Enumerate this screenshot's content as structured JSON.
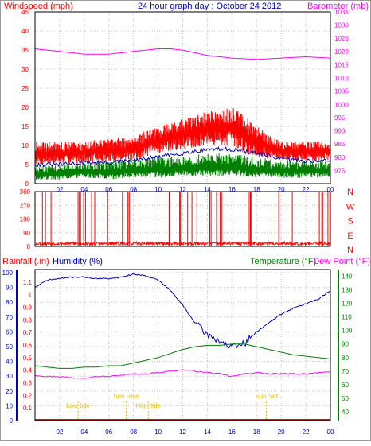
{
  "header": {
    "left_title": "Windspeed (mph)",
    "center_title": "24 hour graph day : October 24 2012",
    "right_title": "Barometer (mb)"
  },
  "colors": {
    "red": "#ff0000",
    "blue": "#0000c0",
    "green": "#008000",
    "magenta": "#ff00ff",
    "yellow": "#e8c000",
    "grid": "#c0c0c0"
  },
  "time_ticks": [
    "02",
    "04",
    "06",
    "08",
    "10",
    "12",
    "14",
    "16",
    "18",
    "20",
    "22",
    "00"
  ],
  "chart_data": [
    {
      "type": "line",
      "name": "wind-barometer",
      "x_range": [
        0,
        24
      ],
      "x_tick_labels": [
        "02",
        "04",
        "06",
        "08",
        "10",
        "12",
        "14",
        "16",
        "18",
        "20",
        "22",
        "00"
      ],
      "left_axis": {
        "label": "Windspeed (mph)",
        "range": [
          0,
          45
        ],
        "ticks": [
          0,
          5,
          10,
          15,
          20,
          25,
          30,
          35,
          40,
          45
        ]
      },
      "right_axis": {
        "label": "Barometer (mb)",
        "range": [
          970,
          1035
        ],
        "ticks": [
          975,
          980,
          985,
          990,
          995,
          1000,
          1005,
          1010,
          1015,
          1020,
          1025,
          1030,
          1035
        ]
      },
      "series": [
        {
          "axis": "right",
          "color": "#ff00ff",
          "x": [
            0,
            2,
            4,
            6,
            8,
            10,
            11,
            12,
            14,
            16,
            18,
            20,
            22,
            24
          ],
          "y": [
            1021,
            1020,
            1019,
            1019,
            1020,
            1021,
            1021,
            1020.5,
            1018.5,
            1017.5,
            1017,
            1017.5,
            1018,
            1017.5
          ]
        },
        {
          "axis": "left",
          "style": "band",
          "color": "#ff0000",
          "x": [
            0,
            2,
            4,
            6,
            8,
            9,
            10,
            12,
            14,
            16,
            17,
            18,
            20,
            22,
            24
          ],
          "low": [
            5,
            5,
            5.5,
            5.5,
            6,
            7,
            8,
            9,
            10,
            10,
            8,
            7,
            6,
            6,
            6
          ],
          "high": [
            11,
            11,
            11,
            12,
            12,
            14,
            15,
            17,
            19,
            20,
            18,
            15,
            11,
            11,
            11
          ]
        },
        {
          "axis": "left",
          "color": "#0000c0",
          "x": [
            0,
            2,
            4,
            6,
            8,
            10,
            12,
            14,
            16,
            18,
            20,
            22,
            24
          ],
          "y": [
            5,
            5,
            5.5,
            5.5,
            6,
            7,
            8,
            9,
            9,
            8,
            6.5,
            6,
            6
          ]
        },
        {
          "axis": "left",
          "style": "band",
          "color": "#008000",
          "x": [
            0,
            2,
            4,
            6,
            8,
            10,
            12,
            14,
            16,
            18,
            20,
            22,
            24
          ],
          "low": [
            1,
            1,
            1.5,
            1,
            1.5,
            1.5,
            2,
            2,
            2,
            1.5,
            1.5,
            1.5,
            1.5
          ],
          "high": [
            5,
            5,
            5.5,
            6,
            6.5,
            7,
            7,
            8,
            8,
            7,
            6,
            6,
            6
          ]
        }
      ]
    },
    {
      "type": "line",
      "name": "wind-direction",
      "x_range": [
        0,
        24
      ],
      "left_axis": {
        "range": [
          0,
          360
        ],
        "ticks": [
          0,
          90,
          180,
          270,
          360
        ]
      },
      "right_axis_labels": [
        "N",
        "W",
        "S",
        "E",
        "N"
      ],
      "series": [
        {
          "color": "#ff0000",
          "baseline_deg": 15,
          "spikes_hour": [
            0.6,
            0.85,
            1.3,
            3.5,
            3.6,
            3.7,
            3.95,
            4.1,
            4.6,
            4.85,
            5.9,
            7.1,
            7.55,
            7.65,
            10.9,
            11.75,
            11.8,
            12.4,
            12.75,
            13.15,
            14.2,
            14.3,
            14.75,
            15.05,
            15.15,
            17.4,
            17.5,
            17.55,
            19.8,
            20.9,
            23.0,
            23.1,
            23.3,
            23.4,
            23.8,
            23.95
          ]
        }
      ]
    },
    {
      "type": "line",
      "name": "rain-humidity-temperature",
      "x_range": [
        0,
        24
      ],
      "left_axis_1": {
        "label": "Rainfall (.in)",
        "range": [
          0,
          1.2
        ],
        "ticks": [
          0.1,
          0.2,
          0.3,
          0.4,
          0.5,
          0.6,
          0.7,
          0.8,
          0.9,
          1,
          1.1
        ]
      },
      "left_axis_2": {
        "label": "Humidity (%)",
        "range": [
          0,
          100
        ],
        "ticks": [
          0,
          10,
          20,
          30,
          40,
          50,
          60,
          70,
          80,
          90,
          100
        ]
      },
      "right_axis": {
        "label": "Temperature (°F)",
        "range": [
          30,
          145
        ],
        "ticks": [
          40,
          50,
          60,
          70,
          80,
          90,
          100,
          110,
          120,
          130,
          140
        ]
      },
      "dewpoint_label": "Dew Point (°F)",
      "series": [
        {
          "name": "Humidity (%)",
          "axis": "humidity",
          "color": "#0000c0",
          "x": [
            0,
            1,
            2,
            3,
            4,
            5,
            6,
            7,
            8,
            9,
            10,
            11,
            12,
            13,
            14,
            15,
            16,
            17,
            18,
            19,
            20,
            21,
            22,
            23,
            24
          ],
          "y": [
            90,
            95,
            96,
            97,
            97,
            96,
            96,
            97,
            99,
            98,
            95,
            88,
            78,
            66,
            58,
            54,
            49,
            52,
            60,
            66,
            72,
            76,
            79,
            82,
            88
          ]
        },
        {
          "name": "Temperature (°F)",
          "axis": "temp",
          "color": "#008000",
          "x": [
            0,
            1,
            2,
            3,
            4,
            5,
            6,
            7,
            8,
            9,
            10,
            11,
            12,
            13,
            14,
            15,
            16,
            17,
            18,
            19,
            20,
            21,
            22,
            23,
            24
          ],
          "y": [
            74,
            73,
            72,
            72,
            73,
            73,
            74,
            74,
            76,
            78,
            80,
            83,
            86,
            88,
            89,
            89,
            90,
            90,
            88,
            86,
            84,
            82,
            81,
            80,
            79
          ]
        },
        {
          "name": "Dew Point (°F)",
          "axis": "temp",
          "color": "#ff00ff",
          "x": [
            0,
            1,
            2,
            3,
            4,
            5,
            6,
            7,
            8,
            9,
            10,
            11,
            12,
            13,
            14,
            15,
            16,
            17,
            18,
            19,
            20,
            21,
            22,
            23,
            24
          ],
          "y": [
            67,
            66,
            66,
            65,
            65,
            66,
            66,
            67,
            68,
            68,
            69,
            70,
            71,
            70,
            69,
            68,
            66,
            68,
            69,
            68,
            68,
            68,
            68,
            69,
            69
          ]
        },
        {
          "name": "Rainfall (.in)",
          "axis": "rain",
          "color": "#ff0000",
          "x": [
            0,
            24
          ],
          "y": [
            0,
            0
          ]
        }
      ],
      "annotations": [
        {
          "text": "Low tide",
          "hour": 3.5
        },
        {
          "text": "Sun Rise",
          "hour": 7.4
        },
        {
          "text": "High tide",
          "hour": 9.2
        },
        {
          "text": "Sun Set",
          "hour": 18.8
        }
      ]
    }
  ]
}
